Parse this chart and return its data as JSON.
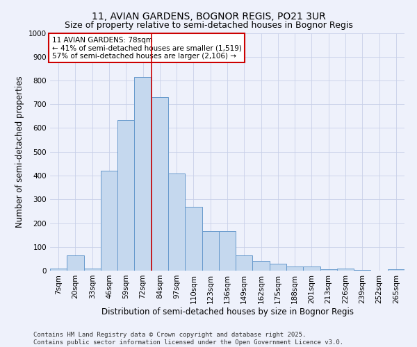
{
  "title": "11, AVIAN GARDENS, BOGNOR REGIS, PO21 3UR",
  "subtitle": "Size of property relative to semi-detached houses in Bognor Regis",
  "xlabel": "Distribution of semi-detached houses by size in Bognor Regis",
  "ylabel": "Number of semi-detached properties",
  "categories": [
    "7sqm",
    "20sqm",
    "33sqm",
    "46sqm",
    "59sqm",
    "72sqm",
    "84sqm",
    "97sqm",
    "110sqm",
    "123sqm",
    "136sqm",
    "149sqm",
    "162sqm",
    "175sqm",
    "188sqm",
    "201sqm",
    "213sqm",
    "226sqm",
    "239sqm",
    "252sqm",
    "265sqm"
  ],
  "values": [
    8,
    65,
    10,
    420,
    635,
    815,
    730,
    410,
    270,
    165,
    165,
    65,
    42,
    30,
    17,
    17,
    5,
    10,
    3,
    0,
    5
  ],
  "bar_color": "#c5d8ee",
  "bar_edge_color": "#6699cc",
  "vline_color": "#cc0000",
  "vline_x_index": 6,
  "annotation_text": "11 AVIAN GARDENS: 78sqm\n← 41% of semi-detached houses are smaller (1,519)\n57% of semi-detached houses are larger (2,106) →",
  "annotation_box_facecolor": "white",
  "annotation_box_edgecolor": "#cc0000",
  "ylim": [
    0,
    1000
  ],
  "yticks": [
    0,
    100,
    200,
    300,
    400,
    500,
    600,
    700,
    800,
    900,
    1000
  ],
  "footer": "Contains HM Land Registry data © Crown copyright and database right 2025.\nContains public sector information licensed under the Open Government Licence v3.0.",
  "background_color": "#eef1fb",
  "grid_color": "#c8d0e8",
  "title_fontsize": 10,
  "subtitle_fontsize": 9,
  "axis_label_fontsize": 8.5,
  "tick_fontsize": 7.5,
  "footer_fontsize": 6.5,
  "annotation_fontsize": 7.5
}
